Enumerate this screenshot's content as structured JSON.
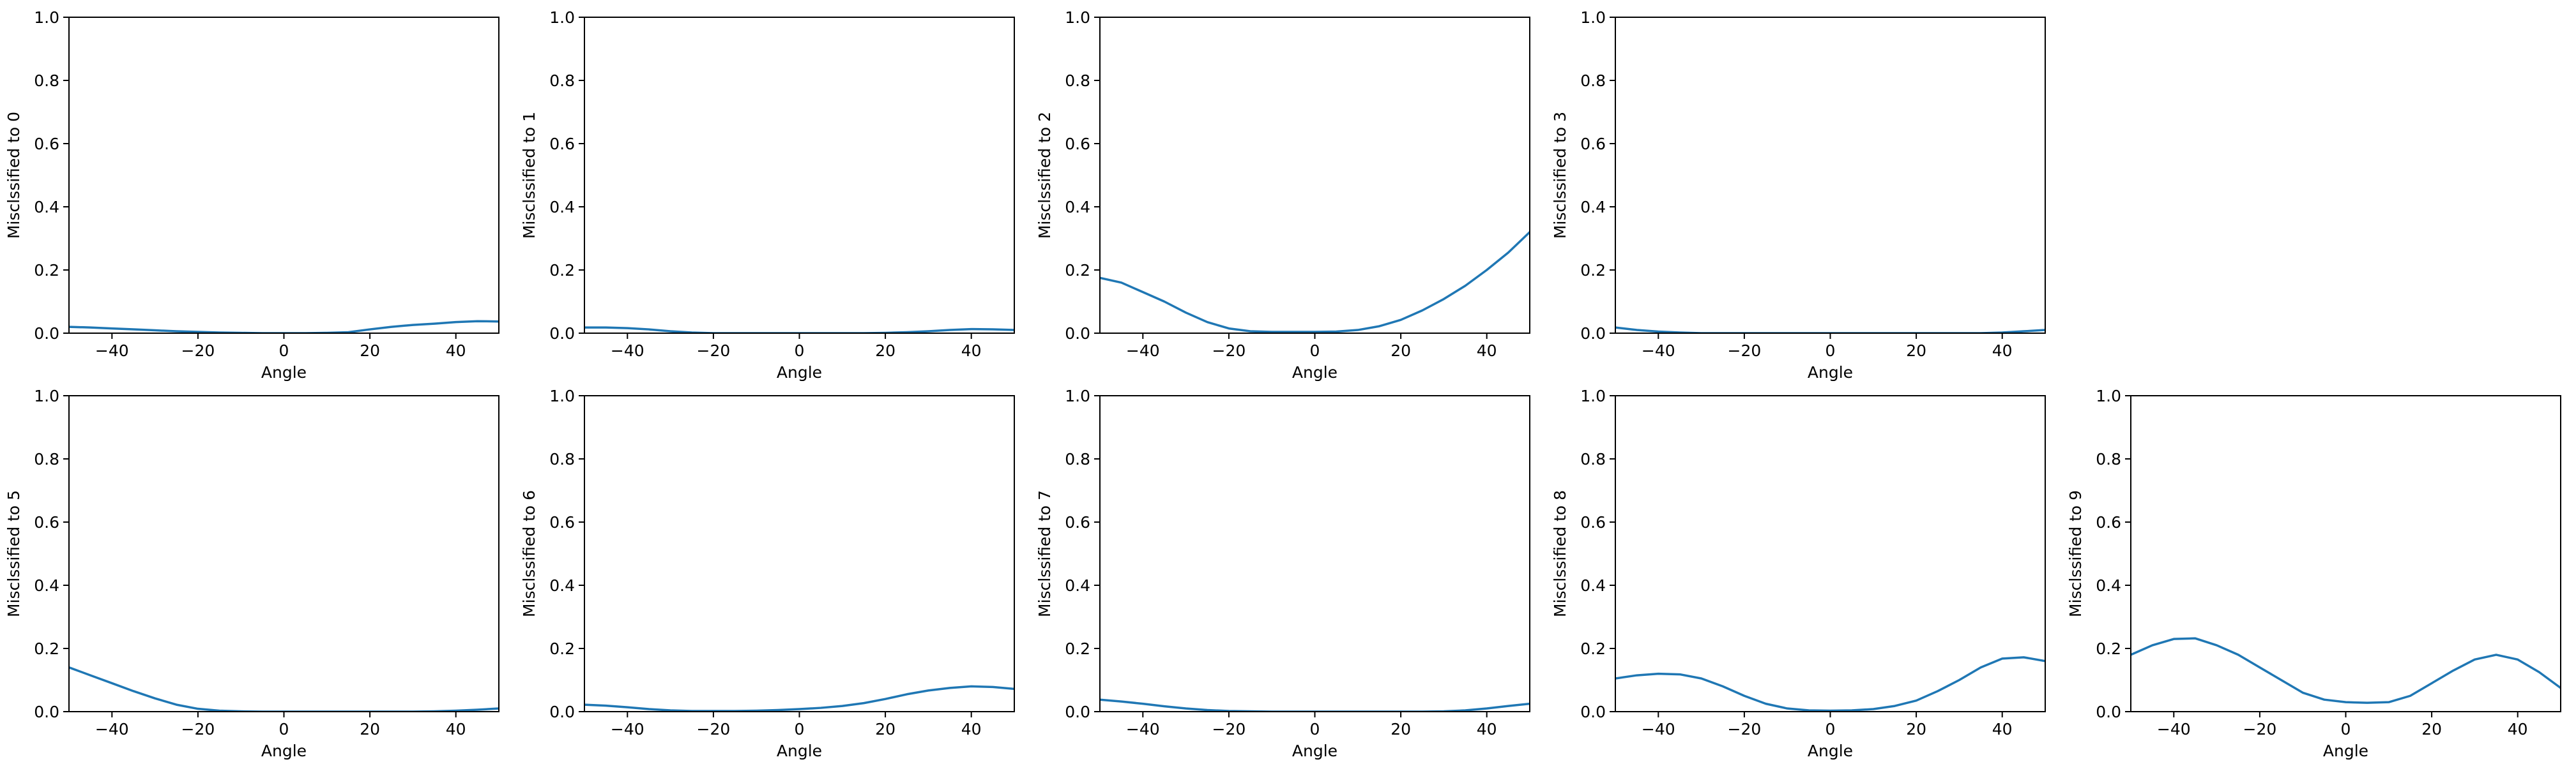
{
  "figure": {
    "panel_layout": {
      "rows": 2,
      "columns": 5,
      "empty_slots": [
        4
      ]
    }
  },
  "colors": {
    "line": "#1f77b4",
    "axes": "#000000",
    "background": "#ffffff"
  },
  "chart_data": [
    {
      "type": "line",
      "title": "",
      "xlabel": "Angle",
      "ylabel": "Misclssified to 0",
      "xlim": [
        -50,
        50
      ],
      "ylim": [
        0,
        1
      ],
      "grid": false,
      "xticks": [
        -40,
        -20,
        0,
        20,
        40
      ],
      "xtick_labels": [
        "−40",
        "−20",
        "0",
        "20",
        "40"
      ],
      "yticks": [
        0,
        0.2,
        0.4,
        0.6,
        0.8,
        1.0
      ],
      "ytick_labels": [
        "0.0",
        "0.2",
        "0.4",
        "0.6",
        "0.8",
        "1.0"
      ],
      "x": [
        -50,
        -45,
        -40,
        -35,
        -30,
        -25,
        -20,
        -15,
        -10,
        -5,
        0,
        5,
        10,
        15,
        20,
        25,
        30,
        35,
        40,
        45,
        50
      ],
      "series": [
        {
          "values": [
            0.02,
            0.018,
            0.015,
            0.012,
            0.009,
            0.006,
            0.004,
            0.002,
            0.001,
            0.0,
            0.0,
            0.0,
            0.001,
            0.003,
            0.012,
            0.02,
            0.026,
            0.03,
            0.035,
            0.038,
            0.037
          ]
        }
      ]
    },
    {
      "type": "line",
      "title": "",
      "xlabel": "Angle",
      "ylabel": "Misclssified to 1",
      "xlim": [
        -50,
        50
      ],
      "ylim": [
        0,
        1
      ],
      "grid": false,
      "xticks": [
        -40,
        -20,
        0,
        20,
        40
      ],
      "xtick_labels": [
        "−40",
        "−20",
        "0",
        "20",
        "40"
      ],
      "yticks": [
        0,
        0.2,
        0.4,
        0.6,
        0.8,
        1.0
      ],
      "ytick_labels": [
        "0.0",
        "0.2",
        "0.4",
        "0.6",
        "0.8",
        "1.0"
      ],
      "x": [
        -50,
        -45,
        -40,
        -35,
        -30,
        -25,
        -20,
        -15,
        -10,
        -5,
        0,
        5,
        10,
        15,
        20,
        25,
        30,
        35,
        40,
        45,
        50
      ],
      "series": [
        {
          "values": [
            0.018,
            0.018,
            0.016,
            0.012,
            0.006,
            0.002,
            0.0,
            0.0,
            0.0,
            0.0,
            0.0,
            0.0,
            0.0,
            0.0,
            0.001,
            0.003,
            0.006,
            0.01,
            0.013,
            0.012,
            0.01
          ]
        }
      ]
    },
    {
      "type": "line",
      "title": "",
      "xlabel": "Angle",
      "ylabel": "Misclssified to 2",
      "xlim": [
        -50,
        50
      ],
      "ylim": [
        0,
        1
      ],
      "grid": false,
      "xticks": [
        -40,
        -20,
        0,
        20,
        40
      ],
      "xtick_labels": [
        "−40",
        "−20",
        "0",
        "20",
        "40"
      ],
      "yticks": [
        0,
        0.2,
        0.4,
        0.6,
        0.8,
        1.0
      ],
      "ytick_labels": [
        "0.0",
        "0.2",
        "0.4",
        "0.6",
        "0.8",
        "1.0"
      ],
      "x": [
        -50,
        -45,
        -40,
        -35,
        -30,
        -25,
        -20,
        -15,
        -10,
        -5,
        0,
        5,
        10,
        15,
        20,
        25,
        30,
        35,
        40,
        45,
        50
      ],
      "series": [
        {
          "values": [
            0.175,
            0.16,
            0.13,
            0.1,
            0.065,
            0.035,
            0.015,
            0.006,
            0.004,
            0.004,
            0.004,
            0.005,
            0.01,
            0.022,
            0.042,
            0.072,
            0.108,
            0.15,
            0.2,
            0.255,
            0.32
          ]
        }
      ]
    },
    {
      "type": "line",
      "title": "",
      "xlabel": "Angle",
      "ylabel": "Misclssified to 3",
      "xlim": [
        -50,
        50
      ],
      "ylim": [
        0,
        1
      ],
      "grid": false,
      "xticks": [
        -40,
        -20,
        0,
        20,
        40
      ],
      "xtick_labels": [
        "−40",
        "−20",
        "0",
        "20",
        "40"
      ],
      "yticks": [
        0,
        0.2,
        0.4,
        0.6,
        0.8,
        1.0
      ],
      "ytick_labels": [
        "0.0",
        "0.2",
        "0.4",
        "0.6",
        "0.8",
        "1.0"
      ],
      "x": [
        -50,
        -45,
        -40,
        -35,
        -30,
        -25,
        -20,
        -15,
        -10,
        -5,
        0,
        5,
        10,
        15,
        20,
        25,
        30,
        35,
        40,
        45,
        50
      ],
      "series": [
        {
          "values": [
            0.018,
            0.01,
            0.005,
            0.002,
            0.0,
            0.0,
            0.0,
            0.0,
            0.0,
            0.0,
            0.0,
            0.0,
            0.0,
            0.0,
            0.0,
            0.0,
            0.0,
            0.0,
            0.002,
            0.006,
            0.01
          ]
        }
      ]
    },
    {
      "type": "line",
      "title": "",
      "xlabel": "Angle",
      "ylabel": "Misclssified to 5",
      "xlim": [
        -50,
        50
      ],
      "ylim": [
        0,
        1
      ],
      "grid": false,
      "xticks": [
        -40,
        -20,
        0,
        20,
        40
      ],
      "xtick_labels": [
        "−40",
        "−20",
        "0",
        "20",
        "40"
      ],
      "yticks": [
        0,
        0.2,
        0.4,
        0.6,
        0.8,
        1.0
      ],
      "ytick_labels": [
        "0.0",
        "0.2",
        "0.4",
        "0.6",
        "0.8",
        "1.0"
      ],
      "x": [
        -50,
        -45,
        -40,
        -35,
        -30,
        -25,
        -20,
        -15,
        -10,
        -5,
        0,
        5,
        10,
        15,
        20,
        25,
        30,
        35,
        40,
        45,
        50
      ],
      "series": [
        {
          "values": [
            0.14,
            0.115,
            0.09,
            0.065,
            0.042,
            0.022,
            0.009,
            0.003,
            0.001,
            0.0,
            0.0,
            0.0,
            0.0,
            0.0,
            0.0,
            0.0,
            0.0,
            0.001,
            0.003,
            0.006,
            0.01
          ]
        }
      ]
    },
    {
      "type": "line",
      "title": "",
      "xlabel": "Angle",
      "ylabel": "Misclssified to 6",
      "xlim": [
        -50,
        50
      ],
      "ylim": [
        0,
        1
      ],
      "grid": false,
      "xticks": [
        -40,
        -20,
        0,
        20,
        40
      ],
      "xtick_labels": [
        "−40",
        "−20",
        "0",
        "20",
        "40"
      ],
      "yticks": [
        0,
        0.2,
        0.4,
        0.6,
        0.8,
        1.0
      ],
      "ytick_labels": [
        "0.0",
        "0.2",
        "0.4",
        "0.6",
        "0.8",
        "1.0"
      ],
      "x": [
        -50,
        -45,
        -40,
        -35,
        -30,
        -25,
        -20,
        -15,
        -10,
        -5,
        0,
        5,
        10,
        15,
        20,
        25,
        30,
        35,
        40,
        45,
        50
      ],
      "series": [
        {
          "values": [
            0.022,
            0.019,
            0.014,
            0.008,
            0.004,
            0.002,
            0.002,
            0.002,
            0.003,
            0.005,
            0.008,
            0.012,
            0.018,
            0.027,
            0.04,
            0.055,
            0.067,
            0.075,
            0.08,
            0.078,
            0.072
          ]
        }
      ]
    },
    {
      "type": "line",
      "title": "",
      "xlabel": "Angle",
      "ylabel": "Misclssified to 7",
      "xlim": [
        -50,
        50
      ],
      "ylim": [
        0,
        1
      ],
      "grid": false,
      "xticks": [
        -40,
        -20,
        0,
        20,
        40
      ],
      "xtick_labels": [
        "−40",
        "−20",
        "0",
        "20",
        "40"
      ],
      "yticks": [
        0,
        0.2,
        0.4,
        0.6,
        0.8,
        1.0
      ],
      "ytick_labels": [
        "0.0",
        "0.2",
        "0.4",
        "0.6",
        "0.8",
        "1.0"
      ],
      "x": [
        -50,
        -45,
        -40,
        -35,
        -30,
        -25,
        -20,
        -15,
        -10,
        -5,
        0,
        5,
        10,
        15,
        20,
        25,
        30,
        35,
        40,
        45,
        50
      ],
      "series": [
        {
          "values": [
            0.038,
            0.032,
            0.025,
            0.017,
            0.01,
            0.005,
            0.002,
            0.001,
            0.0,
            0.0,
            0.0,
            0.0,
            0.0,
            0.0,
            0.0,
            0.0,
            0.001,
            0.004,
            0.01,
            0.018,
            0.025
          ]
        }
      ]
    },
    {
      "type": "line",
      "title": "",
      "xlabel": "Angle",
      "ylabel": "Misclssified to 8",
      "xlim": [
        -50,
        50
      ],
      "ylim": [
        0,
        1
      ],
      "grid": false,
      "xticks": [
        -40,
        -20,
        0,
        20,
        40
      ],
      "xtick_labels": [
        "−40",
        "−20",
        "0",
        "20",
        "40"
      ],
      "yticks": [
        0,
        0.2,
        0.4,
        0.6,
        0.8,
        1.0
      ],
      "ytick_labels": [
        "0.0",
        "0.2",
        "0.4",
        "0.6",
        "0.8",
        "1.0"
      ],
      "x": [
        -50,
        -45,
        -40,
        -35,
        -30,
        -25,
        -20,
        -15,
        -10,
        -5,
        0,
        5,
        10,
        15,
        20,
        25,
        30,
        35,
        40,
        45,
        50
      ],
      "series": [
        {
          "values": [
            0.105,
            0.115,
            0.12,
            0.118,
            0.105,
            0.08,
            0.05,
            0.025,
            0.01,
            0.004,
            0.003,
            0.004,
            0.008,
            0.018,
            0.035,
            0.065,
            0.1,
            0.14,
            0.168,
            0.172,
            0.16
          ]
        }
      ]
    },
    {
      "type": "line",
      "title": "",
      "xlabel": "Angle",
      "ylabel": "Misclssified to 9",
      "xlim": [
        -50,
        50
      ],
      "ylim": [
        0,
        1
      ],
      "grid": false,
      "xticks": [
        -40,
        -20,
        0,
        20,
        40
      ],
      "xtick_labels": [
        "−40",
        "−20",
        "0",
        "20",
        "40"
      ],
      "yticks": [
        0,
        0.2,
        0.4,
        0.6,
        0.8,
        1.0
      ],
      "ytick_labels": [
        "0.0",
        "0.2",
        "0.4",
        "0.6",
        "0.8",
        "1.0"
      ],
      "x": [
        -50,
        -45,
        -40,
        -35,
        -30,
        -25,
        -20,
        -15,
        -10,
        -5,
        0,
        5,
        10,
        15,
        20,
        25,
        30,
        35,
        40,
        45,
        50
      ],
      "series": [
        {
          "values": [
            0.18,
            0.21,
            0.23,
            0.232,
            0.21,
            0.18,
            0.14,
            0.1,
            0.06,
            0.038,
            0.03,
            0.028,
            0.03,
            0.05,
            0.09,
            0.13,
            0.165,
            0.18,
            0.165,
            0.125,
            0.075
          ]
        }
      ]
    }
  ]
}
